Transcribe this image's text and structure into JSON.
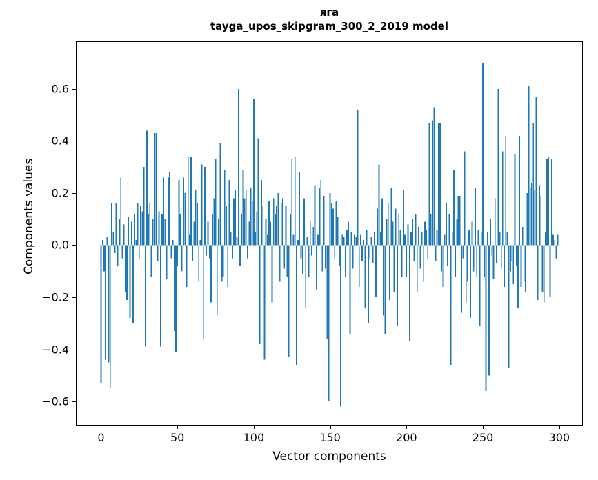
{
  "figure": {
    "title_line1": "яга",
    "title_line2": "tayga_upos_skipgram_300_2_2019 model"
  },
  "chart_data": {
    "type": "bar",
    "title": "яга\ntayga_upos_skipgram_300_2_2019 model",
    "xlabel": "Vector components",
    "ylabel": "Components values",
    "bar_color": "#1f77b4",
    "grid": false,
    "legend": "none",
    "xlim": [
      -16,
      315
    ],
    "ylim": [
      -0.69,
      0.78
    ],
    "xticks": [
      0,
      50,
      100,
      150,
      200,
      250,
      300
    ],
    "yticks": [
      -0.6,
      -0.4,
      -0.2,
      0.0,
      0.2,
      0.4,
      0.6
    ],
    "n_components": 300,
    "values": [
      -0.53,
      0.02,
      -0.1,
      -0.44,
      0.03,
      -0.45,
      -0.55,
      0.16,
      0.05,
      -0.03,
      0.16,
      -0.08,
      0.1,
      0.26,
      -0.05,
      0.08,
      -0.18,
      -0.21,
      0.11,
      -0.28,
      0.09,
      -0.3,
      0.12,
      0.02,
      0.16,
      -0.05,
      0.15,
      0.13,
      0.3,
      -0.39,
      0.44,
      0.12,
      0.16,
      -0.12,
      0.1,
      0.43,
      0.43,
      -0.06,
      0.13,
      -0.39,
      0.12,
      0.26,
      0.1,
      -0.13,
      0.26,
      0.28,
      -0.05,
      0.02,
      -0.33,
      -0.41,
      -0.08,
      0.25,
      0.12,
      -0.1,
      0.26,
      0.2,
      -0.16,
      0.34,
      0.04,
      0.34,
      -0.06,
      0.09,
      0.21,
      0.16,
      -0.14,
      0.02,
      0.31,
      -0.36,
      0.3,
      -0.04,
      0.09,
      -0.05,
      -0.22,
      0.12,
      0.18,
      0.33,
      -0.27,
      0.1,
      0.39,
      -0.14,
      -0.12,
      0.29,
      0.15,
      -0.16,
      0.25,
      0.05,
      -0.05,
      0.18,
      0.21,
      0.03,
      0.6,
      -0.08,
      0.12,
      0.29,
      0.18,
      0.21,
      -0.05,
      0.09,
      0.22,
      0.17,
      0.56,
      0.05,
      0.13,
      0.41,
      -0.38,
      0.25,
      0.15,
      -0.44,
      0.1,
      0.04,
      0.17,
      0.09,
      -0.22,
      0.18,
      0.12,
      0.15,
      0.2,
      -0.14,
      0.16,
      0.18,
      -0.09,
      0.15,
      -0.12,
      -0.43,
      0.12,
      0.33,
      0.04,
      0.34,
      -0.46,
      0.02,
      0.28,
      -0.05,
      -0.11,
      0.18,
      -0.24,
      0.03,
      -0.12,
      0.09,
      -0.04,
      0.07,
      0.23,
      -0.17,
      0.04,
      0.22,
      0.25,
      -0.1,
      0.19,
      -0.09,
      -0.36,
      -0.6,
      0.2,
      0.16,
      0.14,
      -0.05,
      0.17,
      0.11,
      -0.08,
      -0.62,
      0.04,
      0.03,
      -0.12,
      0.06,
      0.09,
      -0.34,
      0.05,
      -0.09,
      0.04,
      0.03,
      0.52,
      -0.16,
      0.04,
      -0.06,
      0.02,
      -0.24,
      0.06,
      -0.3,
      -0.05,
      0.03,
      -0.07,
      0.05,
      -0.2,
      0.14,
      0.31,
      0.05,
      0.18,
      -0.27,
      -0.34,
      0.1,
      0.16,
      -0.21,
      0.22,
      0.09,
      -0.18,
      0.14,
      -0.31,
      0.12,
      0.06,
      -0.12,
      0.21,
      0.04,
      -0.12,
      0.08,
      -0.37,
      0.05,
      0.1,
      -0.06,
      0.12,
      -0.18,
      0.07,
      -0.09,
      0.05,
      -0.14,
      0.09,
      0.06,
      -0.05,
      0.47,
      0.12,
      0.48,
      0.53,
      -0.06,
      0.06,
      0.47,
      0.47,
      -0.1,
      -0.16,
      0.04,
      0.16,
      -0.08,
      0.12,
      -0.46,
      0.05,
      0.29,
      -0.12,
      0.1,
      0.19,
      0.19,
      -0.26,
      -0.05,
      0.36,
      -0.22,
      -0.14,
      0.06,
      -0.28,
      0.09,
      -0.1,
      0.22,
      -0.12,
      0.06,
      -0.31,
      0.05,
      0.7,
      -0.12,
      -0.56,
      0.05,
      -0.5,
      0.1,
      -0.04,
      -0.13,
      0.18,
      -0.07,
      0.6,
      0.05,
      -0.09,
      0.36,
      -0.16,
      0.42,
      0.05,
      -0.47,
      -0.1,
      -0.06,
      -0.15,
      0.35,
      -0.08,
      -0.24,
      0.42,
      -0.16,
      0.07,
      -0.14,
      -0.18,
      0.2,
      0.61,
      0.22,
      0.24,
      0.47,
      0.21,
      0.57,
      -0.21,
      0.23,
      0.19,
      -0.18,
      -0.22,
      0.05,
      0.33,
      0.34,
      -0.2,
      0.33,
      0.04,
      0.02,
      -0.05,
      0.04
    ]
  }
}
